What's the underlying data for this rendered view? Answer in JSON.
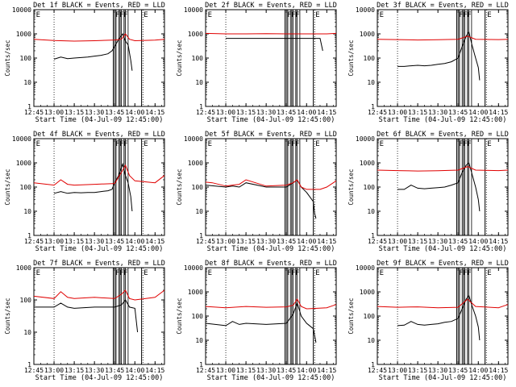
{
  "figure": {
    "background": "#ffffff",
    "colors": {
      "events": "#000000",
      "lld": "#e00000",
      "axis": "#000000"
    }
  },
  "chart_data": [
    {
      "type": "line",
      "title": "Det 1f BLACK = Events, RED = LLD",
      "xlabel": "Start Time (04-Jul-09 12:45:00)",
      "ylabel": "Counts/sec",
      "yscale": "log",
      "ylim": [
        1,
        10000
      ],
      "x_ticks": [
        "12:45",
        "13:00",
        "13:15",
        "13:30",
        "13:45",
        "14:00",
        "14:15"
      ],
      "xlim": [
        "12:45",
        "14:22"
      ],
      "y_ticks": [
        "1",
        "10",
        "100",
        "1000",
        "10000"
      ],
      "dotted_lines": [
        "13:00",
        "14:06"
      ],
      "flag_letters": [
        "E",
        "F",
        "F",
        "F",
        "E"
      ],
      "series": [
        {
          "name": "Events",
          "x": [
            "13:00",
            "13:05",
            "13:10",
            "13:15",
            "13:20",
            "13:25",
            "13:30",
            "13:35",
            "13:40",
            "13:43",
            "13:45",
            "13:48",
            "13:51",
            "13:53",
            "13:55",
            "13:57",
            "13:58"
          ],
          "y": [
            90,
            110,
            95,
            100,
            105,
            110,
            120,
            130,
            150,
            200,
            300,
            600,
            1000,
            500,
            350,
            80,
            30
          ]
        },
        {
          "name": "LLD",
          "x": [
            "12:45",
            "13:00",
            "13:15",
            "13:30",
            "13:45",
            "13:50",
            "13:53",
            "13:56",
            "14:00",
            "14:15",
            "14:22"
          ],
          "y": [
            600,
            530,
            500,
            520,
            560,
            600,
            1000,
            600,
            520,
            550,
            600
          ]
        }
      ]
    },
    {
      "type": "line",
      "title": "Det 2f BLACK = Events, RED = LLD",
      "xlabel": "Start Time (04-Jul-09 12:45:00)",
      "ylabel": "Counts/sec",
      "yscale": "log",
      "ylim": [
        1,
        10000
      ],
      "x_ticks": [
        "12:45",
        "13:00",
        "13:15",
        "13:30",
        "13:45",
        "14:00",
        "14:15"
      ],
      "xlim": [
        "12:45",
        "14:22"
      ],
      "y_ticks": [
        "1",
        "10",
        "100",
        "1000",
        "10000"
      ],
      "dotted_lines": [
        "13:00",
        "14:06"
      ],
      "flag_letters": [
        "E",
        "F",
        "F",
        "F",
        "E"
      ],
      "series": [
        {
          "name": "Events",
          "x": [
            "13:00",
            "13:15",
            "13:30",
            "13:45",
            "14:00",
            "14:10",
            "14:12"
          ],
          "y": [
            650,
            650,
            650,
            650,
            650,
            650,
            200
          ]
        },
        {
          "name": "LLD",
          "x": [
            "12:45",
            "13:00",
            "13:15",
            "13:30",
            "13:45",
            "14:00",
            "14:15",
            "14:22"
          ],
          "y": [
            1050,
            1000,
            1000,
            1020,
            1000,
            1000,
            1000,
            1050
          ]
        }
      ]
    },
    {
      "type": "line",
      "title": "Det 3f BLACK = Events, RED = LLD",
      "xlabel": "Start Time (04-Jul-09 12:45:00)",
      "ylabel": "Counts/sec",
      "yscale": "log",
      "ylim": [
        1,
        10000
      ],
      "x_ticks": [
        "12:45",
        "13:00",
        "13:15",
        "13:30",
        "13:45",
        "14:00",
        "14:15"
      ],
      "xlim": [
        "12:45",
        "14:22"
      ],
      "y_ticks": [
        "1",
        "10",
        "100",
        "1000",
        "10000"
      ],
      "dotted_lines": [
        "13:00",
        "14:06"
      ],
      "flag_letters": [
        "E",
        "F",
        "F",
        "F",
        "E"
      ],
      "series": [
        {
          "name": "Events",
          "x": [
            "13:00",
            "13:05",
            "13:10",
            "13:15",
            "13:20",
            "13:25",
            "13:30",
            "13:35",
            "13:40",
            "13:45",
            "13:48",
            "13:51",
            "13:53",
            "13:55",
            "13:58",
            "14:00",
            "14:01"
          ],
          "y": [
            45,
            45,
            48,
            50,
            48,
            50,
            55,
            60,
            70,
            100,
            300,
            800,
            1200,
            400,
            100,
            40,
            12
          ]
        },
        {
          "name": "LLD",
          "x": [
            "12:45",
            "13:00",
            "13:15",
            "13:30",
            "13:45",
            "13:52",
            "13:58",
            "14:15",
            "14:22"
          ],
          "y": [
            600,
            580,
            560,
            570,
            600,
            800,
            600,
            580,
            600
          ]
        }
      ]
    },
    {
      "type": "line",
      "title": "Det 4f BLACK = Events, RED = LLD",
      "xlabel": "Start Time (04-Jul-09 12:45:00)",
      "ylabel": "Counts/sec",
      "yscale": "log",
      "ylim": [
        1,
        10000
      ],
      "x_ticks": [
        "12:45",
        "13:00",
        "13:15",
        "13:30",
        "13:45",
        "14:00",
        "14:15"
      ],
      "xlim": [
        "12:45",
        "14:22"
      ],
      "y_ticks": [
        "1",
        "10",
        "100",
        "1000",
        "10000"
      ],
      "dotted_lines": [
        "13:00",
        "14:06"
      ],
      "flag_letters": [
        "E",
        "F",
        "F",
        "F",
        "E"
      ],
      "series": [
        {
          "name": "Events",
          "x": [
            "13:00",
            "13:05",
            "13:10",
            "13:15",
            "13:20",
            "13:25",
            "13:30",
            "13:35",
            "13:40",
            "13:43",
            "13:45",
            "13:48",
            "13:51",
            "13:53",
            "13:55",
            "13:57",
            "13:58"
          ],
          "y": [
            55,
            65,
            55,
            60,
            58,
            60,
            60,
            65,
            70,
            80,
            150,
            300,
            900,
            300,
            150,
            40,
            10
          ]
        },
        {
          "name": "LLD",
          "x": [
            "12:45",
            "13:00",
            "13:05",
            "13:10",
            "13:15",
            "13:30",
            "13:45",
            "13:50",
            "13:53",
            "13:56",
            "14:00",
            "14:15",
            "14:22"
          ],
          "y": [
            150,
            120,
            200,
            130,
            120,
            130,
            140,
            400,
            800,
            300,
            180,
            150,
            300
          ]
        }
      ]
    },
    {
      "type": "line",
      "title": "Det 5f BLACK = Events, RED = LLD",
      "xlabel": "Start Time (04-Jul-09 12:45:00)",
      "ylabel": "Counts/sec",
      "yscale": "log",
      "ylim": [
        1,
        10000
      ],
      "x_ticks": [
        "12:45",
        "13:00",
        "13:15",
        "13:30",
        "13:45",
        "14:00",
        "14:15"
      ],
      "xlim": [
        "12:45",
        "14:22"
      ],
      "y_ticks": [
        "1",
        "10",
        "100",
        "1000",
        "10000"
      ],
      "dotted_lines": [
        "13:00",
        "14:06"
      ],
      "flag_letters": [
        "E",
        "F",
        "F",
        "F",
        "E"
      ],
      "series": [
        {
          "name": "Events",
          "x": [
            "12:45",
            "13:00",
            "13:05",
            "13:10",
            "13:15",
            "13:30",
            "13:45",
            "13:50",
            "13:53",
            "13:56",
            "14:00",
            "14:05",
            "14:06",
            "14:07"
          ],
          "y": [
            120,
            100,
            110,
            100,
            150,
            100,
            100,
            150,
            200,
            100,
            60,
            25,
            8,
            5
          ]
        },
        {
          "name": "LLD",
          "x": [
            "12:45",
            "12:50",
            "13:00",
            "13:05",
            "13:10",
            "13:15",
            "13:30",
            "13:45",
            "13:50",
            "13:53",
            "13:56",
            "14:00",
            "14:10",
            "14:15",
            "14:22"
          ],
          "y": [
            160,
            150,
            110,
            120,
            130,
            200,
            110,
            120,
            150,
            200,
            100,
            80,
            80,
            100,
            180
          ]
        }
      ]
    },
    {
      "type": "line",
      "title": "Det 6f BLACK = Events, RED = LLD",
      "xlabel": "Start Time (04-Jul-09 12:45:00)",
      "ylabel": "Counts/sec",
      "yscale": "log",
      "ylim": [
        1,
        10000
      ],
      "x_ticks": [
        "12:45",
        "13:00",
        "13:15",
        "13:30",
        "13:45",
        "14:00",
        "14:15"
      ],
      "xlim": [
        "12:45",
        "14:22"
      ],
      "y_ticks": [
        "1",
        "10",
        "100",
        "1000",
        "10000"
      ],
      "dotted_lines": [
        "13:00",
        "14:06"
      ],
      "flag_letters": [
        "E",
        "F",
        "F",
        "F",
        "E"
      ],
      "series": [
        {
          "name": "Events",
          "x": [
            "13:00",
            "13:05",
            "13:10",
            "13:15",
            "13:20",
            "13:25",
            "13:30",
            "13:35",
            "13:40",
            "13:45",
            "13:48",
            "13:51",
            "13:53",
            "13:55",
            "13:58",
            "14:00",
            "14:01"
          ],
          "y": [
            80,
            80,
            120,
            90,
            85,
            90,
            95,
            100,
            120,
            150,
            400,
            800,
            1000,
            400,
            100,
            30,
            10
          ]
        },
        {
          "name": "LLD",
          "x": [
            "12:45",
            "13:00",
            "13:15",
            "13:30",
            "13:45",
            "13:52",
            "13:58",
            "14:15",
            "14:22"
          ],
          "y": [
            500,
            480,
            460,
            470,
            500,
            700,
            500,
            480,
            500
          ]
        }
      ]
    },
    {
      "type": "line",
      "title": "Det 7f BLACK = Events, RED = LLD",
      "xlabel": "Start Time (04-Jul-09 12:45:00)",
      "ylabel": "Counts/sec",
      "yscale": "log",
      "ylim": [
        1,
        1000
      ],
      "x_ticks": [
        "12:45",
        "13:00",
        "13:15",
        "13:30",
        "13:45",
        "14:00",
        "14:15"
      ],
      "xlim": [
        "12:45",
        "14:22"
      ],
      "y_ticks": [
        "1",
        "10",
        "100",
        "1000"
      ],
      "dotted_lines": [
        "13:00",
        "14:06"
      ],
      "flag_letters": [
        "E",
        "F",
        "F",
        "F",
        "E"
      ],
      "series": [
        {
          "name": "Events",
          "x": [
            "12:45",
            "13:00",
            "13:05",
            "13:10",
            "13:15",
            "13:30",
            "13:45",
            "13:50",
            "13:53",
            "13:56",
            "14:00",
            "14:02"
          ],
          "y": [
            60,
            60,
            80,
            60,
            55,
            60,
            60,
            70,
            100,
            60,
            55,
            10
          ]
        },
        {
          "name": "LLD",
          "x": [
            "12:45",
            "13:00",
            "13:05",
            "13:10",
            "13:15",
            "13:30",
            "13:45",
            "13:50",
            "13:53",
            "13:56",
            "14:00",
            "14:15",
            "14:22"
          ],
          "y": [
            130,
            110,
            180,
            120,
            110,
            120,
            110,
            150,
            200,
            110,
            100,
            120,
            200
          ]
        }
      ]
    },
    {
      "type": "line",
      "title": "Det 8f BLACK = Events, RED = LLD",
      "xlabel": "Start Time (04-Jul-09 12:45:00)",
      "ylabel": "Counts/sec",
      "yscale": "log",
      "ylim": [
        1,
        10000
      ],
      "x_ticks": [
        "12:45",
        "13:00",
        "13:15",
        "13:30",
        "13:45",
        "14:00",
        "14:15"
      ],
      "xlim": [
        "12:45",
        "14:22"
      ],
      "y_ticks": [
        "1",
        "10",
        "100",
        "1000",
        "10000"
      ],
      "dotted_lines": [
        "13:00",
        "14:06"
      ],
      "flag_letters": [
        "E",
        "F",
        "F",
        "F",
        "E"
      ],
      "series": [
        {
          "name": "Events",
          "x": [
            "12:45",
            "13:00",
            "13:05",
            "13:10",
            "13:15",
            "13:30",
            "13:45",
            "13:50",
            "13:53",
            "13:56",
            "14:00",
            "14:05",
            "14:07"
          ],
          "y": [
            50,
            40,
            60,
            45,
            50,
            45,
            50,
            120,
            350,
            100,
            50,
            30,
            8
          ]
        },
        {
          "name": "LLD",
          "x": [
            "12:45",
            "13:00",
            "13:15",
            "13:30",
            "13:45",
            "13:50",
            "13:53",
            "13:56",
            "14:00",
            "14:15",
            "14:22"
          ],
          "y": [
            250,
            220,
            250,
            230,
            240,
            280,
            500,
            250,
            200,
            220,
            300
          ]
        }
      ]
    },
    {
      "type": "line",
      "title": "Det 9f BLACK = Events, RED = LLD",
      "xlabel": "Start Time (04-Jul-09 12:45:00)",
      "ylabel": "Counts/sec",
      "yscale": "log",
      "ylim": [
        1,
        10000
      ],
      "x_ticks": [
        "12:45",
        "13:00",
        "13:15",
        "13:30",
        "13:45",
        "14:00",
        "14:15"
      ],
      "xlim": [
        "12:45",
        "14:22"
      ],
      "y_ticks": [
        "1",
        "10",
        "100",
        "1000",
        "10000"
      ],
      "dotted_lines": [
        "13:00",
        "14:06"
      ],
      "flag_letters": [
        "E",
        "F",
        "F",
        "F",
        "E"
      ],
      "series": [
        {
          "name": "Events",
          "x": [
            "13:00",
            "13:05",
            "13:10",
            "13:15",
            "13:20",
            "13:25",
            "13:30",
            "13:35",
            "13:40",
            "13:45",
            "13:48",
            "13:51",
            "13:53",
            "13:55",
            "13:58",
            "14:00",
            "14:01"
          ],
          "y": [
            40,
            42,
            60,
            45,
            42,
            45,
            48,
            55,
            60,
            80,
            200,
            500,
            700,
            300,
            100,
            35,
            10
          ]
        },
        {
          "name": "LLD",
          "x": [
            "12:45",
            "13:00",
            "13:15",
            "13:30",
            "13:45",
            "13:52",
            "13:58",
            "14:15",
            "14:22"
          ],
          "y": [
            250,
            230,
            240,
            220,
            230,
            500,
            250,
            220,
            300
          ]
        }
      ]
    }
  ]
}
